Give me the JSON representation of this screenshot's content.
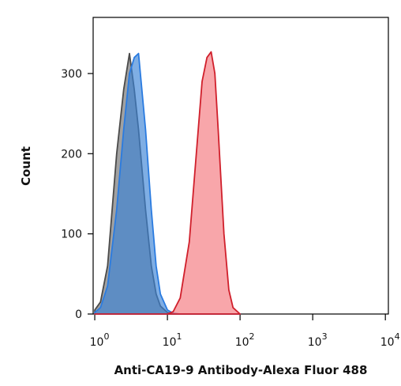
{
  "chart_data": {
    "type": "area",
    "xscale": "log",
    "x_label": "Anti-CA19-9 Antibody-Alexa Fluor 488",
    "y_label": "Count",
    "x": [
      1,
      1.2,
      1.5,
      2,
      2.5,
      3,
      3.5,
      4,
      5,
      6,
      7,
      8,
      10,
      12,
      15,
      20,
      25,
      30,
      35,
      40,
      45,
      50,
      60,
      70,
      80,
      100
    ],
    "series": [
      {
        "color": "#6e6e6e",
        "stroke": "#4a4a4a",
        "values": [
          5,
          15,
          60,
          200,
          280,
          325,
          280,
          230,
          130,
          60,
          25,
          10,
          2,
          0,
          0,
          0,
          0,
          0,
          0,
          0,
          0,
          0,
          0,
          0,
          0,
          0
        ]
      },
      {
        "color": "#3a82d6",
        "stroke": "#2a7be0",
        "values": [
          2,
          8,
          35,
          130,
          230,
          300,
          320,
          325,
          230,
          130,
          60,
          25,
          5,
          1,
          0,
          0,
          0,
          0,
          0,
          0,
          0,
          0,
          0,
          0,
          0,
          0
        ]
      },
      {
        "color": "#f5777c",
        "stroke": "#d01f2b",
        "values": [
          0,
          0,
          0,
          0,
          0,
          0,
          0,
          0,
          0,
          0,
          0,
          0,
          0,
          3,
          20,
          90,
          200,
          290,
          320,
          327,
          300,
          230,
          100,
          30,
          8,
          0
        ]
      }
    ],
    "xlim": [
      0.95,
      11000
    ],
    "ylim": [
      0,
      370
    ],
    "xticks": [
      {
        "value": 1,
        "label": "10",
        "exponent": "0"
      },
      {
        "value": 10,
        "label": "10",
        "exponent": "1"
      },
      {
        "value": 100,
        "label": "10",
        "exponent": "2"
      },
      {
        "value": 1000,
        "label": "10",
        "exponent": "3"
      },
      {
        "value": 10000,
        "label": "10",
        "exponent": "4"
      }
    ],
    "yticks": [
      0,
      100,
      200,
      300
    ]
  }
}
